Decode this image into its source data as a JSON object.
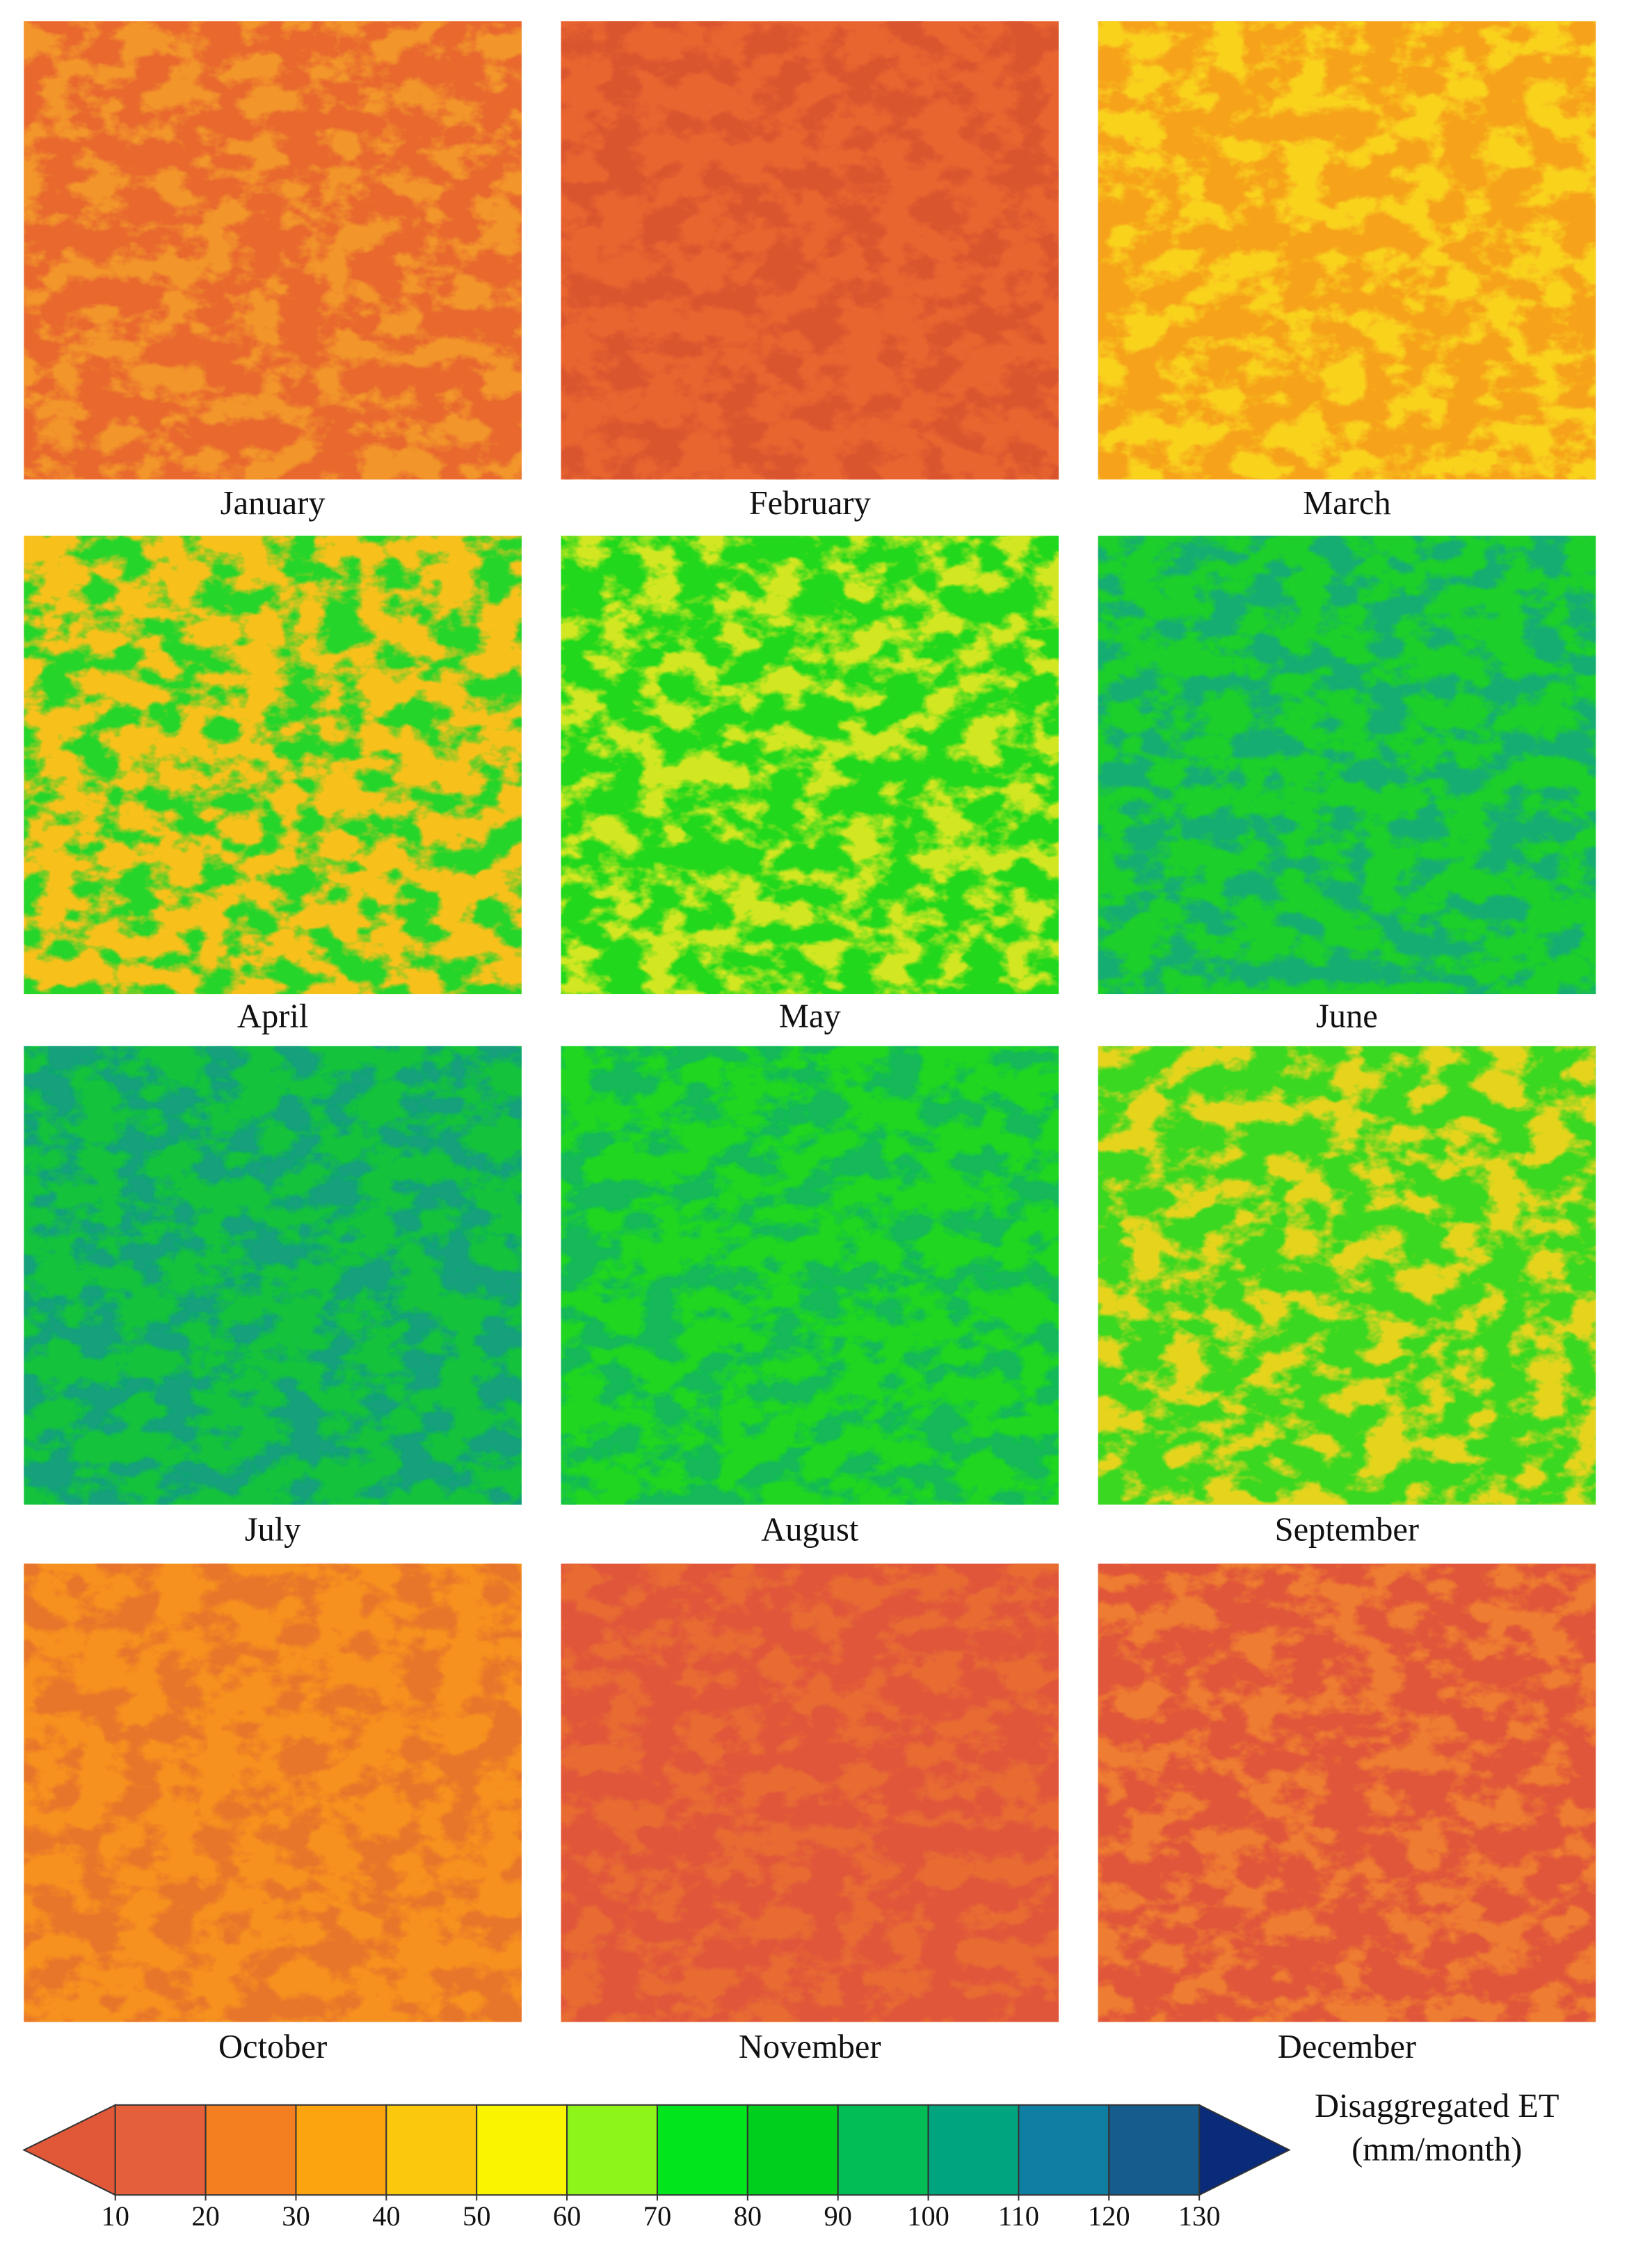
{
  "panels": [
    {
      "label": "January",
      "colors": [
        "#e8682e",
        "#f2952a"
      ]
    },
    {
      "label": "February",
      "colors": [
        "#e8652f",
        "#d9552f"
      ]
    },
    {
      "label": "March",
      "colors": [
        "#f6a21a",
        "#f9d21e"
      ]
    },
    {
      "label": "April",
      "colors": [
        "#f8c01b",
        "#26d52a"
      ]
    },
    {
      "label": "May",
      "colors": [
        "#22d81c",
        "#d2e620"
      ]
    },
    {
      "label": "June",
      "colors": [
        "#1ccf2a",
        "#16ad72"
      ]
    },
    {
      "label": "July",
      "colors": [
        "#14c23c",
        "#12a07c"
      ]
    },
    {
      "label": "August",
      "colors": [
        "#20d620",
        "#12b85a"
      ]
    },
    {
      "label": "September",
      "colors": [
        "#3ad820",
        "#e6d41e"
      ]
    },
    {
      "label": "October",
      "colors": [
        "#f6901e",
        "#e8762a"
      ]
    },
    {
      "label": "November",
      "colors": [
        "#e0563a",
        "#e86c32"
      ]
    },
    {
      "label": "December",
      "colors": [
        "#e0563a",
        "#ee7c30"
      ]
    }
  ],
  "colorbar": {
    "label_lines": [
      "Disaggregated ET",
      "(mm/month)"
    ],
    "lim": [
      10,
      130
    ],
    "ticks": [
      10,
      20,
      30,
      40,
      50,
      60,
      70,
      80,
      90,
      100,
      110,
      120,
      130
    ],
    "colors": [
      "#e4603a",
      "#f47f20",
      "#fba40f",
      "#fcc80e",
      "#f9f400",
      "#8ef51a",
      "#00e51b",
      "#00cf1e",
      "#00bd55",
      "#00a580",
      "#0f7ea3",
      "#165c8c"
    ],
    "extend_colors": [
      "#e05838",
      "#0a2a7a"
    ]
  }
}
